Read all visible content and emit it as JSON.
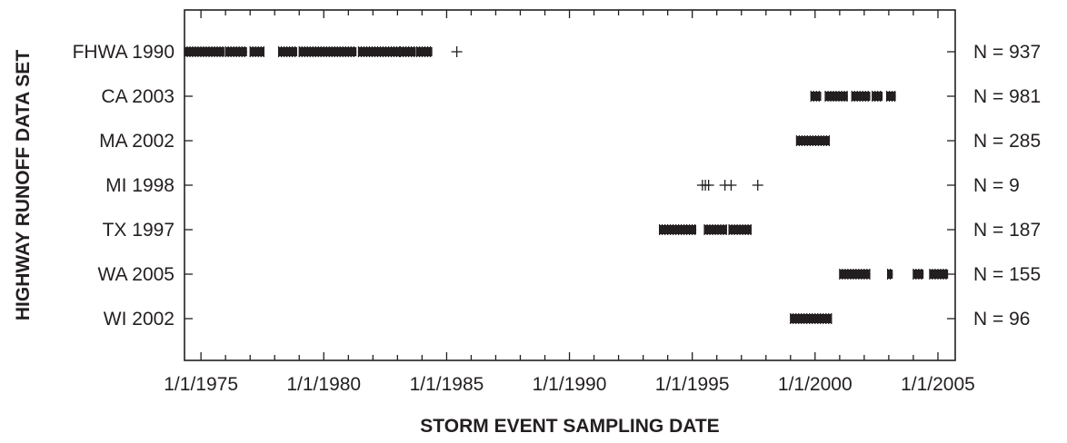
{
  "chart_data": {
    "type": "scatter",
    "title": "",
    "xlabel": "STORM EVENT SAMPLING DATE",
    "ylabel": "HIGHWAY RUNOFF DATA SET",
    "xlim": [
      "1974-05-01",
      "2005-09-15"
    ],
    "x_ticks": [
      "1/1/1975",
      "1/1/1980",
      "1/1/1985",
      "1/1/1990",
      "1/1/1995",
      "1/1/2000",
      "1/1/2005"
    ],
    "x_tick_dates": [
      "1975-01-01",
      "1980-01-01",
      "1985-01-01",
      "1990-01-01",
      "1995-01-01",
      "2000-01-01",
      "2005-01-01"
    ],
    "grid": false,
    "marker": "+",
    "color": "#231f20",
    "series": [
      {
        "name": "FHWA 1990",
        "n_label": "N = 937",
        "ranges": [
          [
            "1974-05-01",
            "1975-12-15"
          ],
          [
            "1976-01-01",
            "1976-11-15"
          ],
          [
            "1977-01-01",
            "1977-08-01"
          ],
          [
            "1978-03-01",
            "1978-12-01"
          ],
          [
            "1979-01-01",
            "1981-05-01"
          ],
          [
            "1981-06-01",
            "1983-02-01"
          ],
          [
            "1983-02-15",
            "1983-10-01"
          ],
          [
            "1983-10-15",
            "1984-06-01"
          ]
        ],
        "points": [
          "1985-06-01"
        ]
      },
      {
        "name": "CA 2003",
        "n_label": "N = 981",
        "ranges": [
          [
            "1999-11-01",
            "2000-04-01"
          ],
          [
            "2000-06-01",
            "2001-05-01"
          ],
          [
            "2001-07-01",
            "2002-04-01"
          ],
          [
            "2002-05-01",
            "2002-10-01"
          ],
          [
            "2002-12-01",
            "2003-04-15"
          ]
        ],
        "points": []
      },
      {
        "name": "MA 2002",
        "n_label": "N = 285",
        "ranges": [
          [
            "1999-04-01",
            "2000-08-01"
          ]
        ],
        "points": []
      },
      {
        "name": "MI 1998",
        "n_label": "N = 9",
        "ranges": [],
        "points": [
          "1995-06-01",
          "1995-07-15",
          "1995-09-01",
          "1996-05-01",
          "1996-08-01",
          "1997-09-01"
        ]
      },
      {
        "name": "TX 1997",
        "n_label": "N = 187",
        "ranges": [
          [
            "1993-09-01",
            "1995-03-01"
          ],
          [
            "1995-07-01",
            "1996-06-01"
          ],
          [
            "1996-07-01",
            "1997-06-01"
          ]
        ],
        "points": []
      },
      {
        "name": "WA 2005",
        "n_label": "N = 155",
        "ranges": [
          [
            "2001-01-01",
            "2002-04-01"
          ],
          [
            "2002-12-15",
            "2003-03-01"
          ],
          [
            "2004-01-01",
            "2004-06-01"
          ],
          [
            "2004-09-01",
            "2005-06-01"
          ]
        ],
        "points": []
      },
      {
        "name": "WI 2002",
        "n_label": "N = 96",
        "ranges": [
          [
            "1999-01-01",
            "2000-09-01"
          ]
        ],
        "points": []
      }
    ]
  }
}
